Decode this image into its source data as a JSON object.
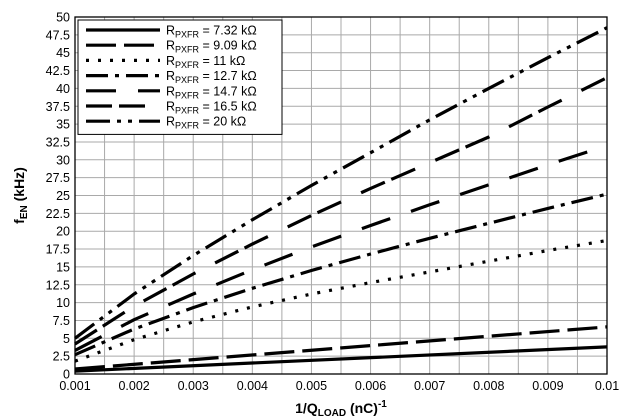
{
  "chart_data": {
    "type": "line",
    "xlabel": {
      "main": "1/Q",
      "sub": "LOAD",
      "rest": " (nC)",
      "sup": "-1"
    },
    "ylabel": {
      "main": "f",
      "sub": "EN",
      "rest": " (kHz)"
    },
    "xlim": [
      0.001,
      0.01
    ],
    "ylim": [
      0,
      50
    ],
    "xticks": [
      0.001,
      0.002,
      0.003,
      0.004,
      0.005,
      0.006,
      0.007,
      0.008,
      0.009,
      0.01
    ],
    "xtick_labels": [
      "0.001",
      "0.002",
      "0.003",
      "0.004",
      "0.005",
      "0.006",
      "0.007",
      "0.008",
      "0.009",
      "0.01"
    ],
    "yticks": [
      0,
      2.5,
      5,
      7.5,
      10,
      12.5,
      15,
      17.5,
      20,
      22.5,
      25,
      27.5,
      30,
      32.5,
      35,
      37.5,
      40,
      42.5,
      45,
      47.5,
      50
    ],
    "ytick_labels": [
      "0",
      "2.5",
      "5",
      "7.5",
      "10",
      "12.5",
      "15",
      "17.5",
      "20",
      "22.5",
      "25",
      "27.5",
      "30",
      "32.5",
      "35",
      "37.5",
      "40",
      "42.5",
      "45",
      "47.5",
      "50"
    ],
    "grid": true,
    "legend_position": "top-left",
    "series": [
      {
        "name": {
          "main": "R",
          "sub": "PXFR",
          "rest": " = 7.32 kΩ"
        },
        "dash": "solid",
        "x": [
          0.001,
          0.01
        ],
        "y": [
          0.4,
          3.8
        ]
      },
      {
        "name": {
          "main": "R",
          "sub": "PXFR",
          "rest": " = 9.09 kΩ"
        },
        "dash": "long",
        "x": [
          0.001,
          0.01
        ],
        "y": [
          0.7,
          6.6
        ]
      },
      {
        "name": {
          "main": "R",
          "sub": "PXFR",
          "rest": " = 11 kΩ"
        },
        "dash": "dot",
        "x": [
          0.001,
          0.002,
          0.003,
          0.004,
          0.005,
          0.006,
          0.007,
          0.008,
          0.009,
          0.01
        ],
        "y": [
          1.8,
          4.8,
          7.3,
          9.4,
          11.2,
          12.8,
          14.3,
          15.8,
          17.3,
          18.7
        ]
      },
      {
        "name": {
          "main": "R",
          "sub": "PXFR",
          "rest": " = 12.7 kΩ"
        },
        "dash": "dashdot",
        "x": [
          0.001,
          0.002,
          0.003,
          0.004,
          0.005,
          0.006,
          0.007,
          0.008,
          0.009,
          0.01
        ],
        "y": [
          2.7,
          6.3,
          9.3,
          12.0,
          14.5,
          16.8,
          19.0,
          21.1,
          23.2,
          25.2
        ]
      },
      {
        "name": {
          "main": "R",
          "sub": "PXFR",
          "rest": " = 14.7 kΩ"
        },
        "dash": "longgap",
        "x": [
          0.001,
          0.002,
          0.003,
          0.004,
          0.005,
          0.006,
          0.007,
          0.008,
          0.009,
          0.01
        ],
        "y": [
          3.3,
          7.6,
          11.2,
          14.6,
          17.8,
          20.8,
          23.7,
          26.5,
          29.3,
          32.0
        ]
      },
      {
        "name": {
          "main": "R",
          "sub": "PXFR",
          "rest": " = 16.5 kΩ"
        },
        "dash": "longdash2",
        "x": [
          0.001,
          0.002,
          0.003,
          0.004,
          0.005,
          0.006,
          0.007,
          0.008,
          0.009,
          0.01
        ],
        "y": [
          4.2,
          9.5,
          14.0,
          18.2,
          22.2,
          26.0,
          29.6,
          33.2,
          37.4,
          41.5
        ]
      },
      {
        "name": {
          "main": "R",
          "sub": "PXFR",
          "rest": " = 20 kΩ"
        },
        "dash": "dashdotdot",
        "x": [
          0.001,
          0.002,
          0.003,
          0.004,
          0.005,
          0.006,
          0.007,
          0.008,
          0.009,
          0.01
        ],
        "y": [
          5.0,
          11.2,
          16.6,
          21.6,
          26.4,
          31.0,
          35.6,
          40.0,
          44.3,
          48.5
        ]
      }
    ]
  }
}
